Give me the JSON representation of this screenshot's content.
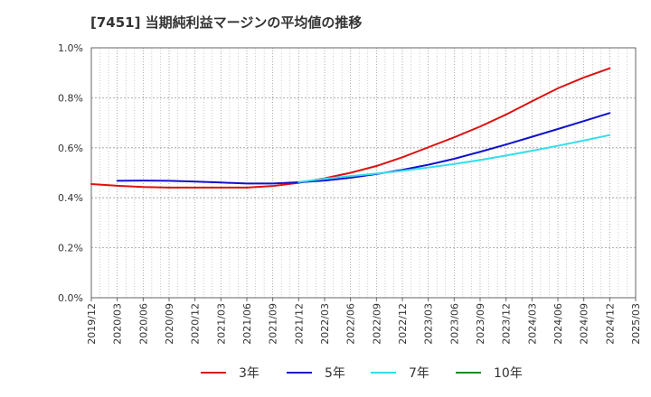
{
  "chart_data": {
    "type": "line",
    "title": "[7451]  当期純利益マージンの平均値の推移",
    "xlabel": "",
    "ylabel": "",
    "ylim": [
      0,
      1.0
    ],
    "yticks": [
      "0.0%",
      "0.2%",
      "0.4%",
      "0.6%",
      "0.8%",
      "1.0%"
    ],
    "x": [
      "2019/12",
      "2020/03",
      "2020/06",
      "2020/09",
      "2020/12",
      "2021/03",
      "2021/06",
      "2021/09",
      "2021/12",
      "2022/03",
      "2022/06",
      "2022/09",
      "2022/12",
      "2023/03",
      "2023/06",
      "2023/09",
      "2023/12",
      "2024/03",
      "2024/06",
      "2024/09",
      "2024/12",
      "2025/03"
    ],
    "grid": true,
    "legend_position": "bottom",
    "series": [
      {
        "name": "3年",
        "color": "#dd1111",
        "values": [
          0.455,
          0.448,
          0.443,
          0.441,
          0.441,
          0.441,
          0.441,
          0.447,
          0.46,
          0.478,
          0.5,
          0.527,
          0.562,
          0.602,
          0.642,
          0.685,
          0.733,
          0.786,
          0.838,
          0.881,
          0.918,
          null
        ]
      },
      {
        "name": "5年",
        "color": "#1111cc",
        "values": [
          null,
          0.468,
          0.469,
          0.468,
          0.465,
          0.461,
          0.457,
          0.457,
          0.462,
          0.469,
          0.48,
          0.495,
          0.512,
          0.532,
          0.556,
          0.584,
          0.613,
          0.644,
          0.675,
          0.707,
          0.739,
          null
        ]
      },
      {
        "name": "7年",
        "color": "#33ddee",
        "values": [
          null,
          null,
          null,
          null,
          null,
          null,
          null,
          null,
          0.463,
          0.476,
          0.487,
          0.497,
          0.508,
          0.521,
          0.535,
          0.551,
          0.569,
          0.588,
          0.608,
          0.629,
          0.651,
          null
        ]
      },
      {
        "name": "10年",
        "color": "#228822",
        "values": [
          null,
          null,
          null,
          null,
          null,
          null,
          null,
          null,
          null,
          null,
          null,
          null,
          null,
          null,
          null,
          null,
          null,
          null,
          null,
          null,
          null,
          null
        ]
      }
    ]
  }
}
